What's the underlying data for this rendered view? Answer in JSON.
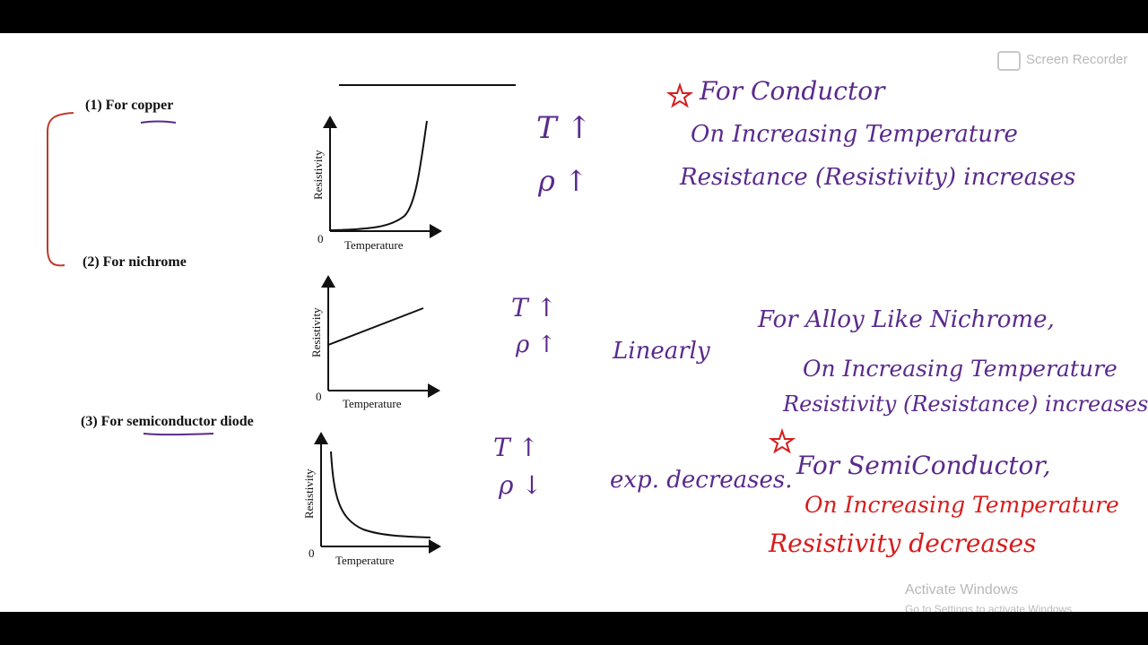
{
  "watermark": {
    "app": "Screen Recorder"
  },
  "print_sheet": {
    "label1": "(1) For copper",
    "label2": "(2) For nichrome",
    "label3": "(3) For semiconductor diode"
  },
  "graphs": [
    {
      "y_axis": "Resistivity",
      "x_axis": "Temperature",
      "origin": "0",
      "shape": "exponential-rise"
    },
    {
      "y_axis": "Resistivity",
      "x_axis": "Temperature",
      "origin": "0",
      "shape": "linear-rise"
    },
    {
      "y_axis": "Resistivity",
      "x_axis": "Temperature",
      "origin": "0",
      "shape": "exponential-decay"
    }
  ],
  "notes": {
    "copper_symbols": [
      "T ↑",
      "ρ ↑"
    ],
    "copper_text": [
      "For Conductor",
      "On Increasing Temperature",
      "Resistance (Resistivity) increases"
    ],
    "nichrome_symbols": [
      "T ↑",
      "ρ ↑"
    ],
    "nichrome_mid": "Linearly",
    "nichrome_text": [
      "For Alloy Like Nichrome,",
      "On Increasing Temperature",
      "Resistivity (Resistance) increases)"
    ],
    "semi_symbols": [
      "T ↑",
      "ρ ↓"
    ],
    "semi_mid": "exp. decreases.",
    "semi_text": [
      "For SemiConductor,",
      "On Increasing Temperature",
      "Resistivity decreases"
    ]
  },
  "taskbar_hint": {
    "line1": "Activate Windows",
    "line2": "Go to Settings to activate Windows."
  },
  "colors": {
    "ink_purple": "#5a2a8c",
    "ink_red": "#d81c1c",
    "bracket_red": "#c0392b"
  }
}
